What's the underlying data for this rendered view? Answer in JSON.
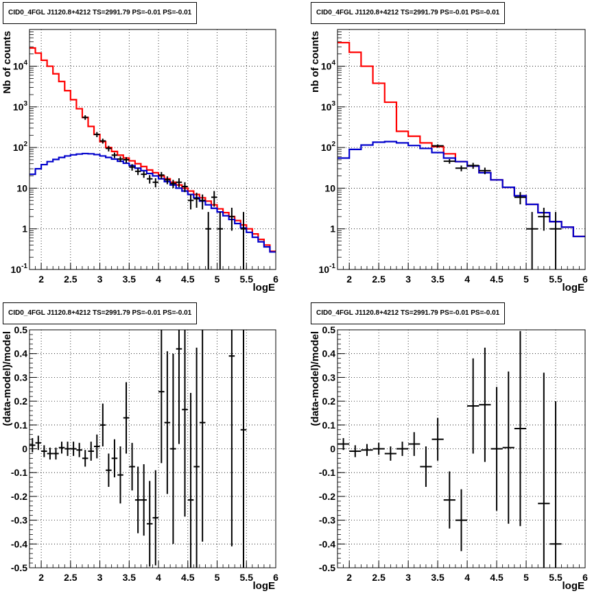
{
  "chart_data": [
    {
      "type": "histogram-log",
      "title": "CID0_4FGL J1120.8+4212 TS=2991.79 PS=-0.01 PS=-0.01",
      "xlabel": "logE",
      "ylabel": "Nb of counts",
      "xlim": [
        1.8,
        6.0
      ],
      "ylim": [
        0.1,
        80000
      ],
      "yscale": "log",
      "grid": true,
      "x_ticks": [
        "2",
        "2.5",
        "3",
        "3.5",
        "4",
        "4.5",
        "5",
        "5.5",
        "6"
      ],
      "y_ticks": [
        "10^-1",
        "1",
        "10",
        "10^2",
        "10^3",
        "10^4"
      ],
      "binwidth": 0.1,
      "series": [
        {
          "name": "",
          "color": "#ff0000",
          "style": "step",
          "x": [
            1.8,
            1.9,
            2.0,
            2.1,
            2.2,
            2.3,
            2.4,
            2.5,
            2.6,
            2.7,
            2.8,
            2.9,
            3.0,
            3.1,
            3.2,
            3.3,
            3.4,
            3.5,
            3.6,
            3.7,
            3.8,
            3.9,
            4.0,
            4.1,
            4.2,
            4.3,
            4.4,
            4.5,
            4.6,
            4.7,
            4.8,
            4.9,
            5.0,
            5.1,
            5.2,
            5.3,
            5.4,
            5.5,
            5.6,
            5.7,
            5.8,
            5.9
          ],
          "y": [
            28000,
            21000,
            14000,
            10000,
            6500,
            4200,
            2500,
            1500,
            900,
            550,
            330,
            210,
            140,
            100,
            80,
            65,
            55,
            47,
            40,
            34,
            28,
            24,
            20,
            17,
            14,
            12,
            10,
            8.5,
            7,
            5.8,
            4.8,
            3.9,
            3.1,
            2.5,
            2.0,
            1.6,
            1.25,
            1.0,
            0.75,
            0.55,
            0.4,
            0.28
          ]
        },
        {
          "name": "",
          "color": "#0000cc",
          "style": "step",
          "x": [
            1.8,
            1.9,
            2.0,
            2.1,
            2.2,
            2.3,
            2.4,
            2.5,
            2.6,
            2.7,
            2.8,
            2.9,
            3.0,
            3.1,
            3.2,
            3.3,
            3.4,
            3.5,
            3.6,
            3.7,
            3.8,
            3.9,
            4.0,
            4.1,
            4.2,
            4.3,
            4.4,
            4.5,
            4.6,
            4.7,
            4.8,
            4.9,
            5.0,
            5.1,
            5.2,
            5.3,
            5.4,
            5.5,
            5.6,
            5.7,
            5.8,
            5.9
          ],
          "y": [
            22,
            30,
            38,
            45,
            51,
            57,
            62,
            66,
            69,
            71,
            70,
            67,
            62,
            57,
            52,
            46,
            41,
            36,
            31,
            27,
            23,
            20,
            17,
            14.5,
            12,
            10,
            8.5,
            7,
            5.8,
            4.8,
            3.9,
            3.2,
            2.6,
            2.1,
            1.7,
            1.35,
            1.05,
            0.82,
            0.62,
            0.48,
            0.36,
            0.27
          ]
        },
        {
          "name": "",
          "color": "#000000",
          "style": "errorbar",
          "x": [
            2.75,
            2.95,
            3.05,
            3.15,
            3.25,
            3.35,
            3.45,
            3.55,
            3.65,
            3.75,
            3.85,
            3.95,
            4.05,
            4.15,
            4.25,
            4.35,
            4.45,
            4.55,
            4.65,
            4.75,
            4.85,
            4.95,
            5.05,
            5.25,
            5.45
          ],
          "y": [
            550,
            210,
            145,
            95,
            65,
            52,
            50,
            33,
            26,
            22,
            17,
            14,
            21,
            16,
            13,
            14,
            11,
            5,
            5.5,
            5,
            1,
            6,
            1,
            2,
            1
          ],
          "ylo": [
            480,
            180,
            125,
            80,
            55,
            44,
            42,
            27,
            21,
            18,
            13,
            10.5,
            17,
            12.5,
            10,
            10.5,
            8,
            3,
            3.3,
            3,
            0.1,
            3.5,
            0.1,
            0.9,
            0.1
          ],
          "yhi": [
            620,
            240,
            165,
            110,
            75,
            60,
            58,
            39,
            31,
            26,
            21,
            17.5,
            25,
            19.5,
            16,
            17.5,
            14,
            7,
            7.7,
            7,
            2.6,
            8.5,
            2.6,
            3.3,
            2.6
          ]
        }
      ]
    },
    {
      "type": "histogram-log",
      "title": "CID0_4FGL J1120.8+4212 TS=2991.79 PS=-0.01 PS=-0.01",
      "xlabel": "logE",
      "ylabel": "nb of counts",
      "xlim": [
        1.8,
        6.0
      ],
      "ylim": [
        0.1,
        80000
      ],
      "yscale": "log",
      "grid": true,
      "x_ticks": [
        "2",
        "2.5",
        "3",
        "3.5",
        "4",
        "4.5",
        "5",
        "5.5",
        "6"
      ],
      "y_ticks": [
        "10^-1",
        "1",
        "10",
        "10^2",
        "10^3",
        "10^4"
      ],
      "binwidth": 0.2,
      "series": [
        {
          "name": "",
          "color": "#ff0000",
          "style": "step",
          "x": [
            1.8,
            2.0,
            2.2,
            2.4,
            2.6,
            2.8,
            3.0,
            3.2,
            3.4,
            3.6,
            3.8,
            4.0,
            4.2,
            4.4,
            4.6,
            4.8,
            5.0,
            5.2,
            5.4,
            5.6,
            5.8
          ],
          "y": [
            38000,
            22000,
            10000,
            3800,
            1300,
            250,
            190,
            130,
            105,
            70,
            45,
            35,
            24,
            16,
            10.5,
            6.5,
            4,
            2.5,
            1.5,
            1.1,
            0.65
          ]
        },
        {
          "name": "",
          "color": "#0000cc",
          "style": "step",
          "x": [
            1.8,
            2.0,
            2.2,
            2.4,
            2.6,
            2.8,
            3.0,
            3.2,
            3.4,
            3.6,
            3.8,
            4.0,
            4.2,
            4.4,
            4.6,
            4.8,
            5.0,
            5.2,
            5.4,
            5.6,
            5.8
          ],
          "y": [
            55,
            90,
            115,
            135,
            140,
            130,
            112,
            95,
            75,
            55,
            45,
            35,
            24,
            16,
            10.5,
            6.5,
            4,
            2.5,
            1.5,
            1.1,
            0.65
          ]
        },
        {
          "name": "",
          "color": "#000000",
          "style": "errorbar",
          "x": [
            3.5,
            3.7,
            3.9,
            4.1,
            4.3,
            4.9,
            5.1,
            5.3,
            5.5
          ],
          "y": [
            110,
            46,
            31,
            36,
            27,
            6,
            1,
            2,
            1
          ],
          "ylo": [
            100,
            40,
            26,
            30,
            22,
            4,
            0.1,
            0.9,
            0.1
          ],
          "yhi": [
            120,
            52,
            36,
            42,
            32,
            8,
            2.6,
            3.3,
            2.6
          ]
        }
      ]
    },
    {
      "type": "errorbar",
      "title": "CID0_4FGL J1120.8+4212 TS=2991.79 PS=-0.01 PS=-0.01",
      "xlabel": "logE",
      "ylabel": "(data-model)/model",
      "xlim": [
        1.8,
        6.0
      ],
      "ylim": [
        -0.5,
        0.5
      ],
      "grid": true,
      "x_ticks": [
        "2",
        "2.5",
        "3",
        "3.5",
        "4",
        "4.5",
        "5",
        "5.5",
        "6"
      ],
      "y_ticks": [
        "-0.5",
        "-0.4",
        "-0.3",
        "-0.2",
        "-0.1",
        "0",
        "0.1",
        "0.2",
        "0.3",
        "0.4",
        "0.5"
      ],
      "binwidth": 0.1,
      "x": [
        1.85,
        1.95,
        2.05,
        2.15,
        2.25,
        2.35,
        2.45,
        2.55,
        2.65,
        2.75,
        2.85,
        2.95,
        3.05,
        3.15,
        3.25,
        3.35,
        3.45,
        3.55,
        3.65,
        3.75,
        3.85,
        3.95,
        4.05,
        4.15,
        4.25,
        4.35,
        4.45,
        4.55,
        4.65,
        4.75,
        5.25,
        5.45
      ],
      "y": [
        0.015,
        0.025,
        -0.01,
        -0.02,
        -0.02,
        0.005,
        0.0,
        0.0,
        -0.005,
        -0.04,
        -0.01,
        0.01,
        0.1,
        -0.09,
        -0.04,
        -0.11,
        0.13,
        -0.075,
        -0.215,
        -0.215,
        -0.315,
        -0.29,
        0.24,
        0.11,
        0.0,
        0.42,
        0.165,
        -0.215,
        -0.075,
        0.11,
        0.39,
        0.08
      ],
      "err": [
        0.03,
        0.03,
        0.025,
        0.025,
        0.025,
        0.025,
        0.03,
        0.03,
        0.03,
        0.035,
        0.04,
        0.05,
        0.09,
        0.07,
        0.08,
        0.12,
        0.15,
        0.1,
        0.14,
        0.15,
        0.18,
        0.2,
        0.3,
        0.3,
        0.4,
        0.4,
        0.45,
        0.45,
        0.5,
        0.5,
        0.8,
        0.8
      ]
    },
    {
      "type": "errorbar",
      "title": "CID0_4FGL J1120.8+4212 TS=2991.79 PS=-0.01 PS=-0.01",
      "xlabel": "logE",
      "ylabel": "(data-model)/model",
      "xlim": [
        1.8,
        6.0
      ],
      "ylim": [
        -0.5,
        0.5
      ],
      "grid": true,
      "x_ticks": [
        "2",
        "2.5",
        "3",
        "3.5",
        "4",
        "4.5",
        "5",
        "5.5",
        "6"
      ],
      "y_ticks": [
        "-0.5",
        "-0.4",
        "-0.3",
        "-0.2",
        "-0.1",
        "0",
        "0.1",
        "0.2",
        "0.3",
        "0.4",
        "0.5"
      ],
      "binwidth": 0.2,
      "x": [
        1.9,
        2.1,
        2.3,
        2.5,
        2.7,
        2.9,
        3.1,
        3.3,
        3.5,
        3.7,
        3.9,
        4.1,
        4.3,
        4.5,
        4.7,
        4.9,
        5.3,
        5.5
      ],
      "y": [
        0.02,
        -0.01,
        -0.005,
        0.0,
        -0.02,
        0.0,
        0.02,
        -0.075,
        0.04,
        -0.215,
        -0.3,
        0.18,
        0.185,
        0.0,
        0.005,
        0.085,
        -0.23,
        -0.4
      ],
      "err": [
        0.025,
        0.025,
        0.025,
        0.025,
        0.03,
        0.03,
        0.05,
        0.085,
        0.09,
        0.12,
        0.13,
        0.2,
        0.24,
        0.26,
        0.32,
        0.41,
        0.55,
        0.6
      ]
    }
  ]
}
